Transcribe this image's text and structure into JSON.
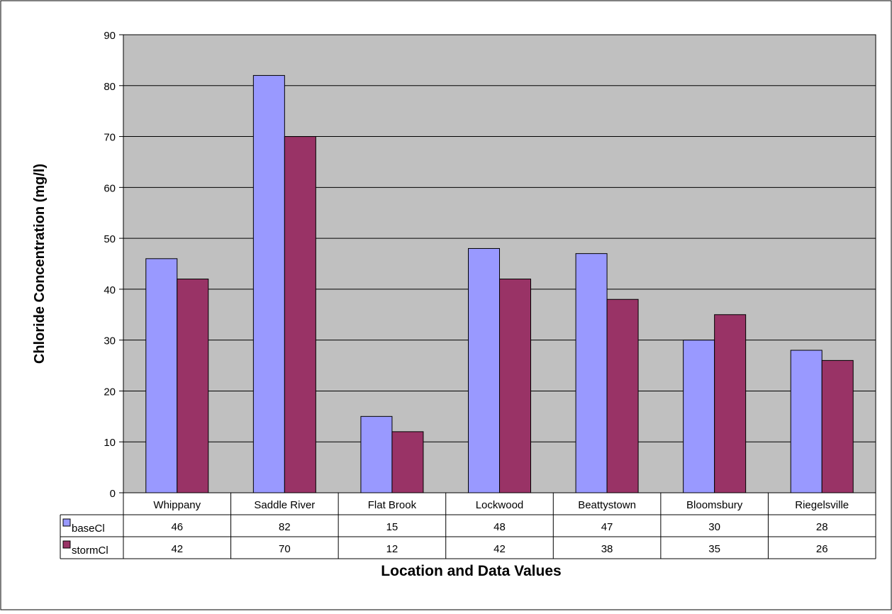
{
  "chart_data": {
    "type": "bar",
    "title": "",
    "xlabel": "Location and Data Values",
    "ylabel": "Chloride Concentration (mg/l)",
    "ylim": [
      0,
      90
    ],
    "yticks": [
      0,
      10,
      20,
      30,
      40,
      50,
      60,
      70,
      80,
      90
    ],
    "grid": true,
    "legend": "data-table-left",
    "categories": [
      "Whippany",
      "Saddle River",
      "Flat Brook",
      "Lockwood",
      "Beattystown",
      "Bloomsbury",
      "Riegelsville"
    ],
    "series": [
      {
        "name": "baseCl",
        "values": [
          46,
          82,
          15,
          48,
          47,
          30,
          28
        ],
        "color": "#9999ff"
      },
      {
        "name": "stormCl",
        "values": [
          42,
          70,
          12,
          42,
          38,
          35,
          26
        ],
        "color": "#993366"
      }
    ],
    "plot_background": "#c0c0c0"
  }
}
